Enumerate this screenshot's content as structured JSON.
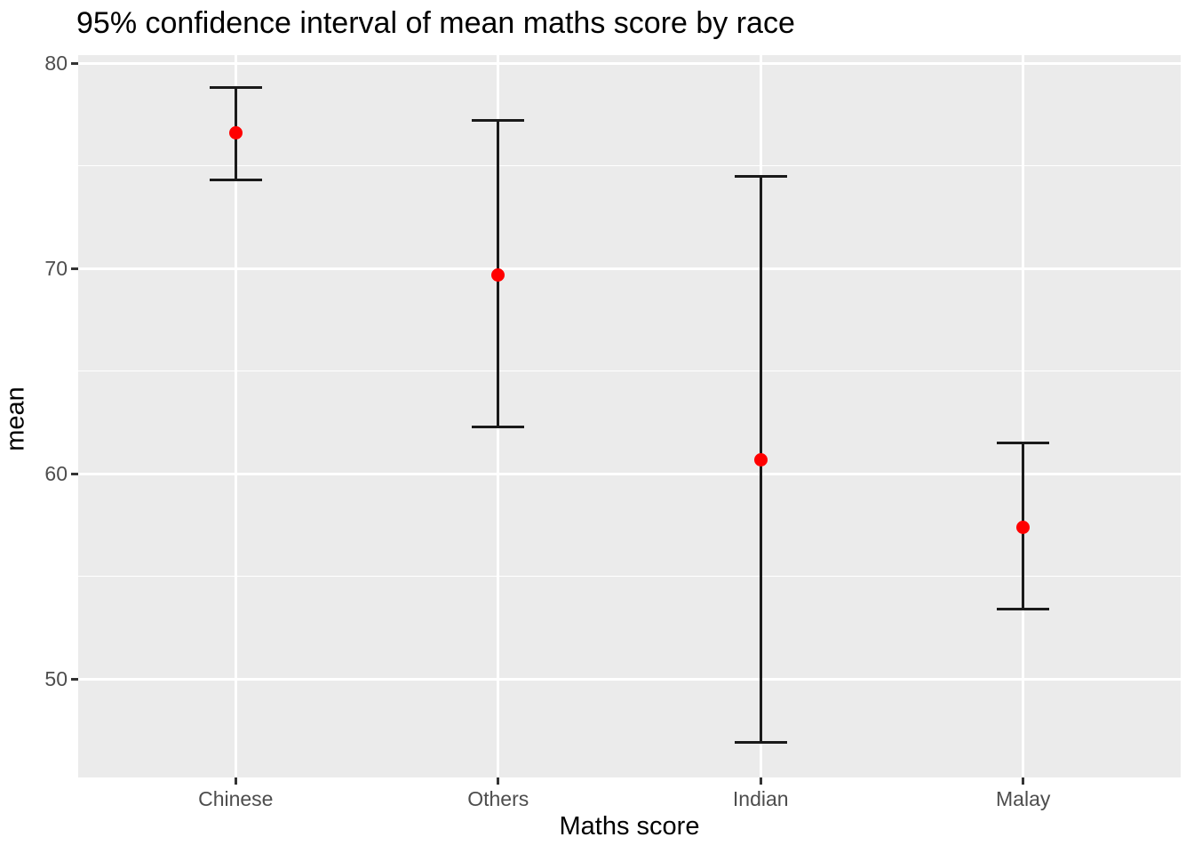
{
  "chart_data": {
    "type": "errorbar",
    "title": "95% confidence interval of mean maths score by race",
    "xlabel": "Maths score",
    "ylabel": "mean",
    "categories": [
      "Chinese",
      "Others",
      "Indian",
      "Malay"
    ],
    "series": [
      {
        "name": "mean",
        "values": [
          76.6,
          69.7,
          60.7,
          57.4
        ]
      }
    ],
    "error_bars": {
      "upper": [
        78.8,
        77.2,
        74.5,
        61.5
      ],
      "lower": [
        74.3,
        62.3,
        46.9,
        53.4
      ]
    },
    "yticks": [
      80,
      70,
      60,
      50
    ],
    "yticks_minor": [
      75,
      65,
      55
    ],
    "ylim": [
      45.2,
      80.4
    ],
    "grid": "major and minor horizontal white lines, vertical major lines at each category",
    "legend": "none",
    "colors": {
      "point": "#FF0000",
      "errorbar": "#1a1a1a",
      "panel_background": "#EBEBEB",
      "gridline": "#FFFFFF",
      "axis_text": "#4D4D4D",
      "axis_title": "#000000",
      "title": "#000000",
      "tick_mark": "#333333"
    }
  }
}
